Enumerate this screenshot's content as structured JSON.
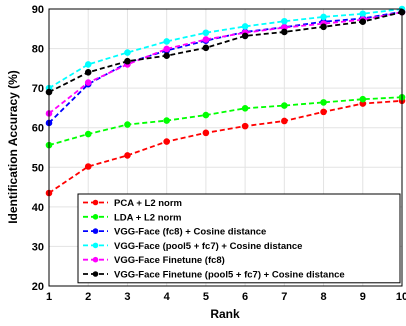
{
  "chart_data": {
    "type": "line",
    "title": "",
    "xlabel": "Rank",
    "ylabel": "Identification Accuracy (%)",
    "xlim": [
      1,
      10
    ],
    "ylim": [
      20,
      90
    ],
    "x": [
      1,
      2,
      3,
      4,
      5,
      6,
      7,
      8,
      9,
      10
    ],
    "xticks": [
      "1",
      "2",
      "3",
      "4",
      "5",
      "6",
      "7",
      "8",
      "9",
      "10"
    ],
    "yticks": [
      "20",
      "30",
      "40",
      "50",
      "60",
      "70",
      "80",
      "90"
    ],
    "grid": true,
    "legend_position": "bottom-right",
    "series": [
      {
        "name": "PCA + L2 norm",
        "color": "#ff0000",
        "values": [
          43.5,
          50.2,
          53.0,
          56.5,
          58.7,
          60.4,
          61.7,
          64.0,
          66.1,
          66.8
        ]
      },
      {
        "name": "LDA + L2 norm",
        "color": "#00ff00",
        "values": [
          55.6,
          58.4,
          60.8,
          61.8,
          63.2,
          64.9,
          65.6,
          66.4,
          67.2,
          67.7
        ]
      },
      {
        "name": "VGG-Face (fc8) + Cosine distance",
        "color": "#0000ff",
        "values": [
          61.2,
          71.0,
          76.4,
          79.5,
          82.0,
          84.2,
          85.4,
          86.8,
          87.6,
          89.3
        ]
      },
      {
        "name": "VGG-Face (pool5 + fc7) + Cosine distance",
        "color": "#00ffff",
        "values": [
          70.0,
          76.0,
          79.0,
          81.8,
          84.0,
          85.6,
          86.9,
          88.0,
          88.8,
          90.0
        ]
      },
      {
        "name": "VGG-Face Finetune (fc8)",
        "color": "#ff00ff",
        "values": [
          63.6,
          71.4,
          76.0,
          79.9,
          82.3,
          84.0,
          85.3,
          86.3,
          87.3,
          89.2
        ]
      },
      {
        "name": "VGG-Face Finetune (pool5 + fc7) + Cosine distance",
        "color": "#000000",
        "values": [
          69.0,
          74.0,
          76.8,
          78.2,
          80.2,
          83.2,
          84.2,
          85.5,
          86.8,
          89.2
        ]
      }
    ]
  }
}
